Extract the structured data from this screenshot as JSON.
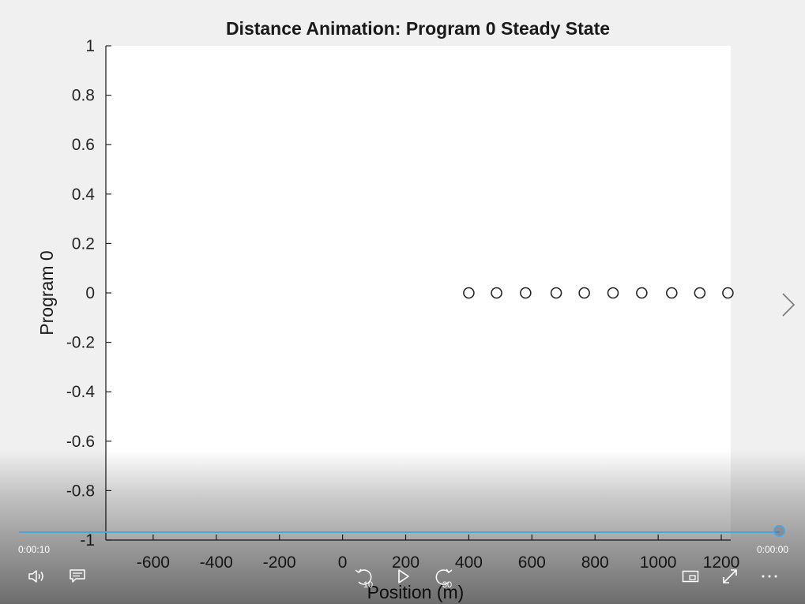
{
  "player": {
    "elapsed": "0:00:10",
    "remaining": "0:00:00",
    "progress": 1.0,
    "rewind_seconds": "10",
    "forward_seconds": "30",
    "accent": "#4fa3e0"
  },
  "icons": {
    "volume": "volume-icon",
    "captions": "captions-icon",
    "rewind": "rewind-10-icon",
    "play": "play-icon",
    "forward": "forward-30-icon",
    "miniview": "miniview-icon",
    "fullscreen": "fullscreen-icon",
    "more": "more-icon",
    "next": "next-chevron-icon"
  },
  "chart_data": {
    "type": "scatter",
    "title": "Distance Animation: Program 0 Steady State",
    "xlabel": "Position (m)",
    "ylabel": "Program 0",
    "xlim": [
      -750,
      1230
    ],
    "ylim": [
      -1,
      1
    ],
    "xticks": [
      -600,
      -400,
      -200,
      0,
      200,
      400,
      600,
      800,
      1000,
      1200
    ],
    "xtick_labels": [
      "-600",
      "-400",
      "-200",
      "0",
      "200",
      "400",
      "600",
      "800",
      "1000",
      "1200"
    ],
    "yticks": [
      1,
      0.8,
      0.6,
      0.4,
      0.2,
      0,
      -0.2,
      -0.4,
      -0.6,
      -0.8,
      -1
    ],
    "ytick_labels": [
      "1",
      "0.8",
      "0.6",
      "0.4",
      "0.2",
      "0",
      "-0.2",
      "-0.4",
      "-0.6",
      "-0.8",
      "-1"
    ],
    "marker": "circle-open",
    "grid": false,
    "series": [
      {
        "x": [
          400,
          488,
          580,
          677,
          766,
          857,
          948,
          1043,
          1132,
          1221
        ],
        "y": [
          0,
          0,
          0,
          0,
          0,
          0,
          0,
          0,
          0,
          0
        ]
      }
    ]
  }
}
